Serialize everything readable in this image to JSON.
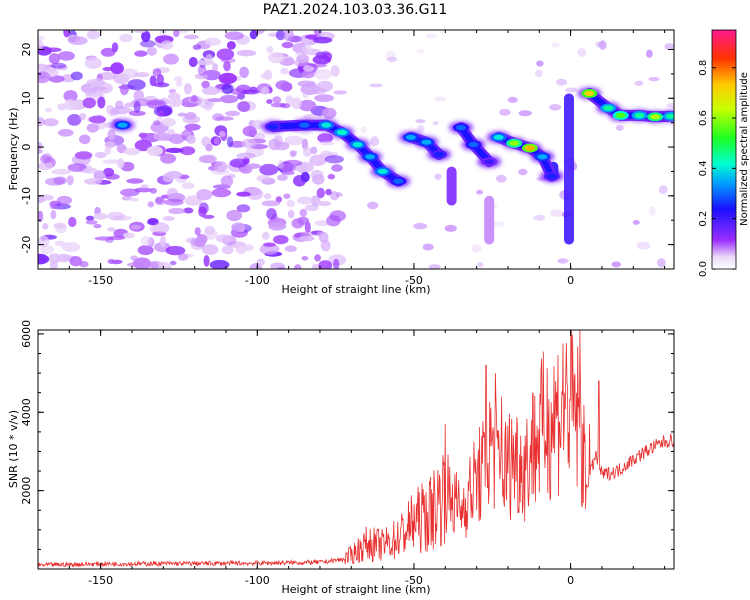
{
  "title": "PAZ1.2024.103.03.36.G11",
  "chart_data": [
    {
      "type": "heatmap",
      "xlabel": "Height of straight line (km)",
      "ylabel": "Frequency (Hz)",
      "xlim": [
        -170,
        33
      ],
      "ylim": [
        -25,
        24
      ],
      "xticks": [
        -150,
        -100,
        -50,
        0
      ],
      "yticks": [
        -20,
        -10,
        0,
        10,
        20
      ],
      "colorbar": {
        "label": "Normalized spectral amplitude",
        "range": [
          0,
          0.95
        ],
        "ticks": [
          0.0,
          0.2,
          0.4,
          0.6,
          0.8
        ]
      },
      "ridge": [
        {
          "x": -143,
          "y": 4.5,
          "amp": 0.35
        },
        {
          "x": -95,
          "y": 4.2,
          "amp": 0.25
        },
        {
          "x": -85,
          "y": 4.5,
          "amp": 0.3
        },
        {
          "x": -78,
          "y": 4.5,
          "amp": 0.4
        },
        {
          "x": -73,
          "y": 3.0,
          "amp": 0.42
        },
        {
          "x": -68,
          "y": 0.5,
          "amp": 0.4
        },
        {
          "x": -64,
          "y": -2.0,
          "amp": 0.35
        },
        {
          "x": -60,
          "y": -5.0,
          "amp": 0.4
        },
        {
          "x": -55,
          "y": -7.0,
          "amp": 0.3
        },
        {
          "x": -51,
          "y": 2.0,
          "amp": 0.35
        },
        {
          "x": -46,
          "y": 1.0,
          "amp": 0.35
        },
        {
          "x": -42,
          "y": -1.5,
          "amp": 0.25
        },
        {
          "x": -35,
          "y": 4.0,
          "amp": 0.3
        },
        {
          "x": -31,
          "y": 0.5,
          "amp": 0.3
        },
        {
          "x": -26,
          "y": -3.0,
          "amp": 0.2
        },
        {
          "x": -23,
          "y": 2.0,
          "amp": 0.4
        },
        {
          "x": -18,
          "y": 0.8,
          "amp": 0.6
        },
        {
          "x": -13,
          "y": -0.2,
          "amp": 0.75
        },
        {
          "x": -9,
          "y": -2.0,
          "amp": 0.35
        },
        {
          "x": -6,
          "y": -6.0,
          "amp": 0.25
        },
        {
          "x": 6,
          "y": 11.0,
          "amp": 0.72
        },
        {
          "x": 12,
          "y": 8.0,
          "amp": 0.45
        },
        {
          "x": 16,
          "y": 6.5,
          "amp": 0.55
        },
        {
          "x": 22,
          "y": 6.5,
          "amp": 0.45
        },
        {
          "x": 27,
          "y": 6.2,
          "amp": 0.62
        },
        {
          "x": 32,
          "y": 6.3,
          "amp": 0.45
        }
      ]
    },
    {
      "type": "line",
      "xlabel": "Height of straight line (km)",
      "ylabel": "SNR (10 * v/v)",
      "xlim": [
        -170,
        33
      ],
      "ylim": [
        0,
        6100
      ],
      "xticks": [
        -150,
        -100,
        -50,
        0
      ],
      "yticks": [
        2000,
        4000,
        6000
      ],
      "color": "#e83030",
      "series": [
        {
          "x": [
            -170,
            -150,
            -120,
            -100,
            -80,
            -72,
            -65,
            -60,
            -55,
            -50,
            -45,
            -40,
            -35,
            -30,
            -27,
            -25,
            -22,
            -18,
            -15,
            -12,
            -8,
            -5,
            -2,
            0,
            3,
            5,
            8,
            10,
            15,
            20,
            25,
            30,
            33
          ],
          "y": [
            100,
            130,
            140,
            150,
            170,
            250,
            650,
            600,
            800,
            1200,
            1400,
            2000,
            1500,
            2300,
            2600,
            3300,
            2400,
            2900,
            2600,
            3100,
            3700,
            3900,
            4300,
            4200,
            3700,
            2100,
            2900,
            2400,
            2500,
            2800,
            3050,
            3250,
            3300
          ]
        }
      ],
      "spikes": [
        {
          "x": -27,
          "y": 5200
        },
        {
          "x": -24,
          "y": 5000
        },
        {
          "x": -40,
          "y": 3700
        },
        {
          "x": -22,
          "y": 4400
        },
        {
          "x": -12,
          "y": 4500
        },
        {
          "x": 3,
          "y": 6100
        },
        {
          "x": 9,
          "y": 4800
        },
        {
          "x": 6,
          "y": 3700
        }
      ]
    }
  ]
}
